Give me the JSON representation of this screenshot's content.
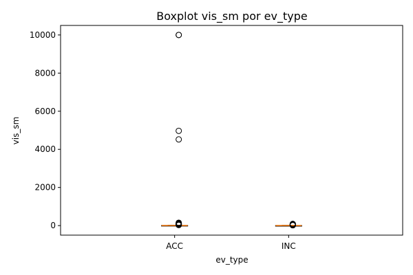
{
  "chart_data": {
    "type": "boxplot",
    "title": "Boxplot vis_sm por ev_type",
    "xlabel": "ev_type",
    "ylabel": "vis_sm",
    "categories": [
      "ACC",
      "INC"
    ],
    "ylim": [
      -500,
      10500
    ],
    "yticks": [
      0,
      2000,
      4000,
      6000,
      8000,
      10000
    ],
    "grid": false,
    "colors": {
      "median": "#ff7f0e",
      "box": "#000000",
      "flier": "#000000"
    },
    "boxes": [
      {
        "category": "ACC",
        "whisker_low": 0,
        "q1": 2,
        "median": 5,
        "q3": 10,
        "whisker_high": 20,
        "fliers": [
          10000,
          10000,
          4970,
          4520,
          150,
          120,
          100,
          80,
          60,
          45,
          35,
          30
        ]
      },
      {
        "category": "INC",
        "whisker_low": 0,
        "q1": 1,
        "median": 3,
        "q3": 6,
        "whisker_high": 12,
        "fliers": [
          90,
          75,
          60,
          50,
          40,
          30,
          22,
          18
        ]
      }
    ]
  }
}
